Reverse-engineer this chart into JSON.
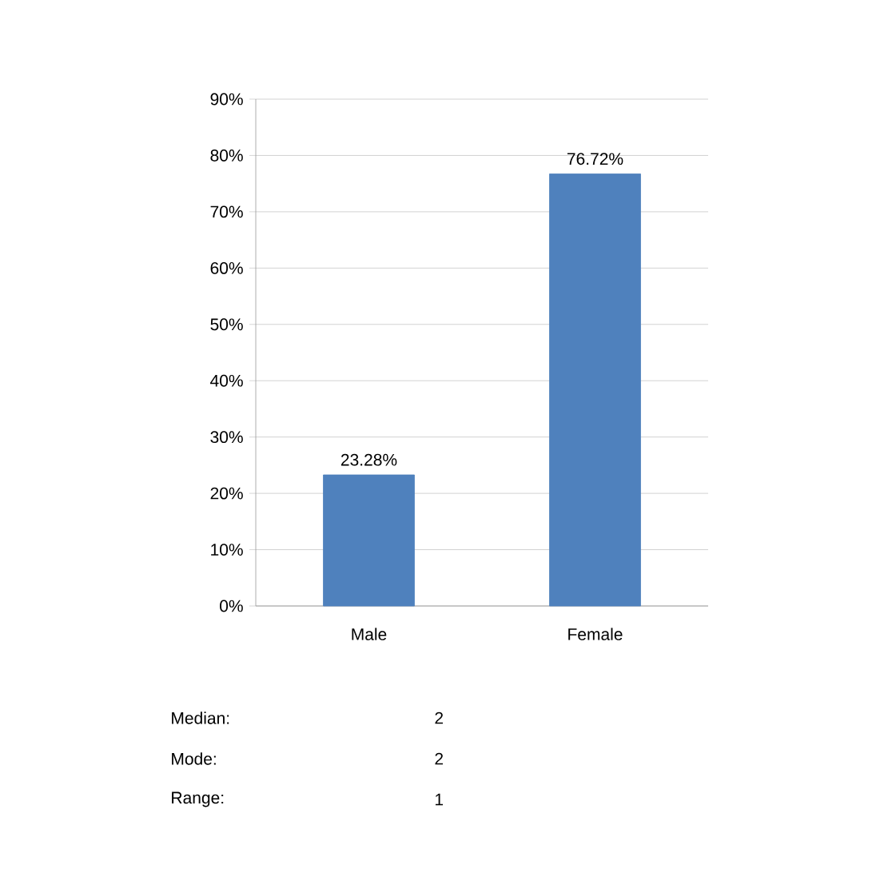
{
  "chart_data": {
    "type": "bar",
    "categories": [
      "Male",
      "Female"
    ],
    "values": [
      23.28,
      76.72
    ],
    "value_labels": [
      "23.28%",
      "76.72%"
    ],
    "color": "#4f81bd",
    "ylim": [
      0,
      90
    ],
    "yticks": [
      {
        "value": 0,
        "label": "0%"
      },
      {
        "value": 10,
        "label": "10%"
      },
      {
        "value": 20,
        "label": "20%"
      },
      {
        "value": 30,
        "label": "30%"
      },
      {
        "value": 40,
        "label": "40%"
      },
      {
        "value": 50,
        "label": "50%"
      },
      {
        "value": 60,
        "label": "60%"
      },
      {
        "value": 70,
        "label": "70%"
      },
      {
        "value": 80,
        "label": "80%"
      },
      {
        "value": 90,
        "label": "90%"
      }
    ],
    "grid": "y",
    "annotations": [
      "Median:",
      "2",
      "Mode:",
      "2",
      "Range:",
      "1"
    ]
  }
}
